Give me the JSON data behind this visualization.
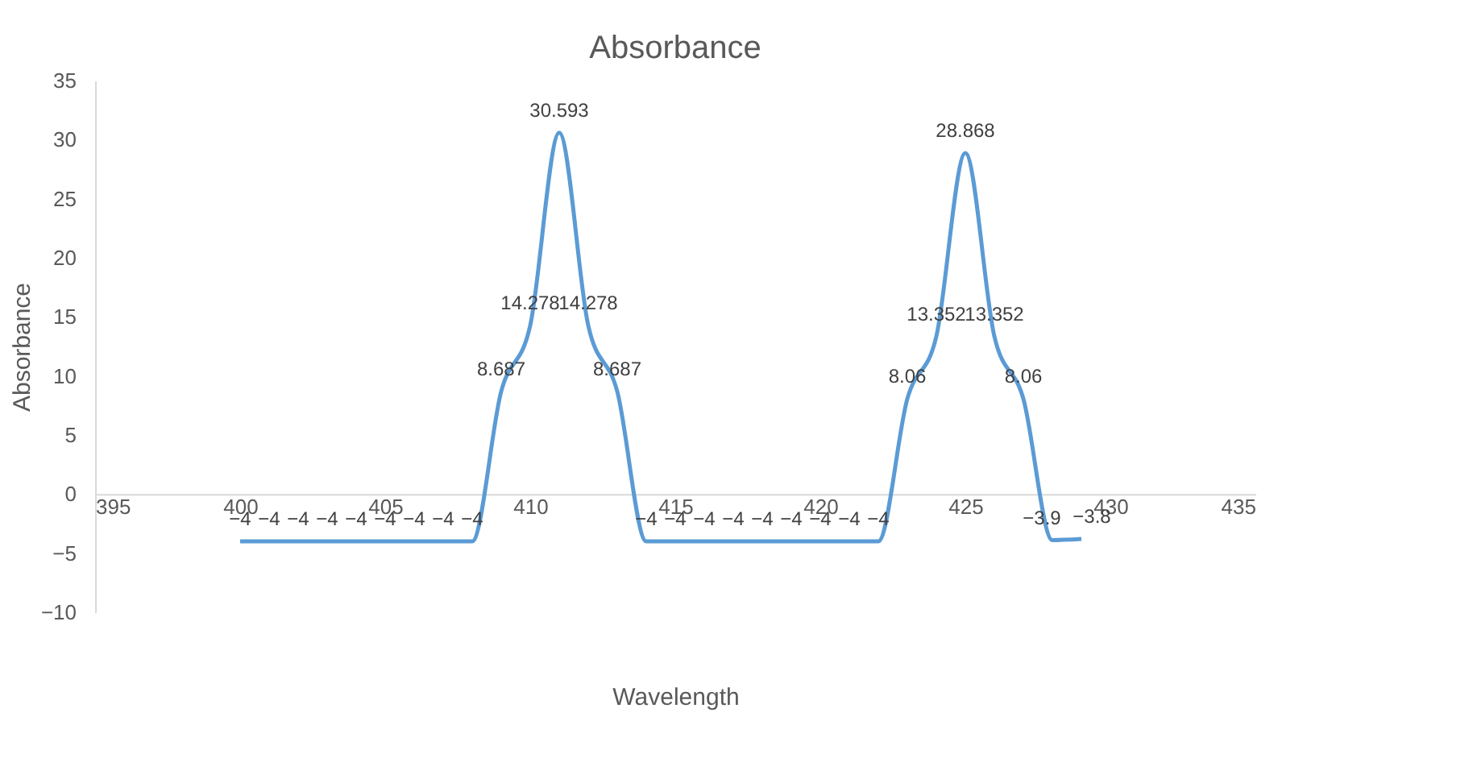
{
  "chart_data": {
    "type": "line",
    "title": "Absorbance",
    "xlabel": "Wavelength",
    "ylabel": "Absorbance",
    "x": [
      400,
      401,
      402,
      403,
      404,
      405,
      406,
      407,
      408,
      409,
      410,
      411,
      412,
      413,
      414,
      415,
      416,
      417,
      418,
      419,
      420,
      421,
      422,
      423,
      424,
      425,
      426,
      427,
      428,
      429
    ],
    "series": [
      {
        "color": "#5b9bd5",
        "values": [
          -4,
          -4,
          -4,
          -4,
          -4,
          -4,
          -4,
          -4,
          -4,
          8.687,
          14.278,
          30.593,
          14.278,
          8.687,
          -4,
          -4,
          -4,
          -4,
          -4,
          -4,
          -4,
          -4,
          -4,
          8.06,
          13.352,
          28.868,
          13.352,
          8.06,
          -3.9,
          -3.8
        ]
      }
    ],
    "xlim": [
      395,
      435
    ],
    "xticks": [
      395,
      400,
      405,
      410,
      415,
      420,
      425,
      430,
      435
    ],
    "ylim": [
      -10,
      35
    ],
    "yticks": [
      -10,
      -5,
      0,
      5,
      10,
      15,
      20,
      25,
      30,
      35
    ],
    "data_labels": true,
    "grid": false,
    "marker": "none",
    "line_style": "solid"
  }
}
